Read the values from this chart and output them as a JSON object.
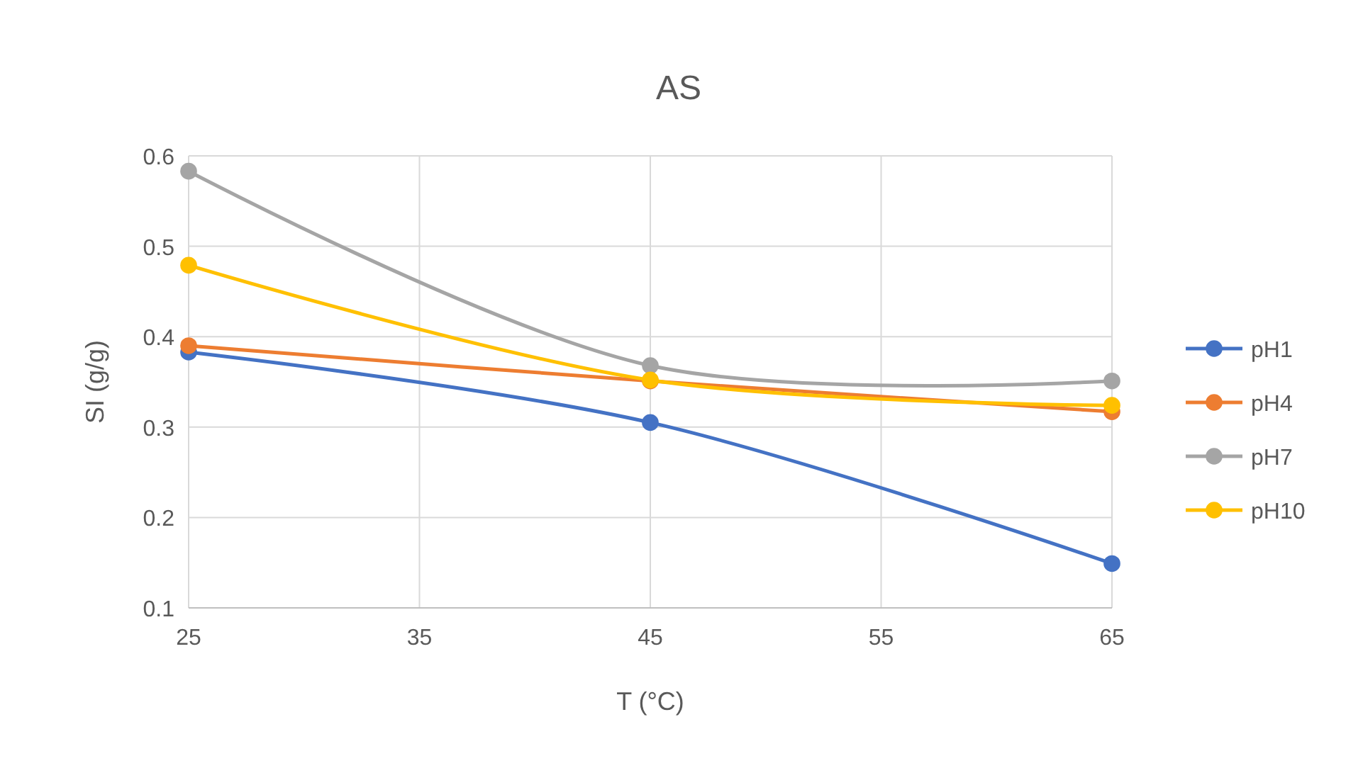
{
  "chart_data": {
    "type": "line",
    "title": "AS",
    "xlabel": "T (°C)",
    "ylabel": "SI (g/g)",
    "x": [
      25,
      45,
      65
    ],
    "series": [
      {
        "name": "pH1",
        "color": "#4472c4",
        "values": [
          0.383,
          0.305,
          0.149
        ]
      },
      {
        "name": "pH4",
        "color": "#ed7d31",
        "values": [
          0.39,
          0.351,
          0.317
        ]
      },
      {
        "name": "pH7",
        "color": "#a5a5a5",
        "values": [
          0.583,
          0.368,
          0.351
        ]
      },
      {
        "name": "pH10",
        "color": "#ffc000",
        "values": [
          0.479,
          0.352,
          0.324
        ]
      }
    ],
    "xlim": [
      25,
      65
    ],
    "xticks": [
      25,
      35,
      45,
      55,
      65
    ],
    "ylim": [
      0.1,
      0.6
    ],
    "yticks": [
      0.1,
      0.2,
      0.3,
      0.4,
      0.5,
      0.6
    ],
    "grid": true,
    "legend": "right",
    "marker": "circle",
    "line_style": "solid"
  }
}
